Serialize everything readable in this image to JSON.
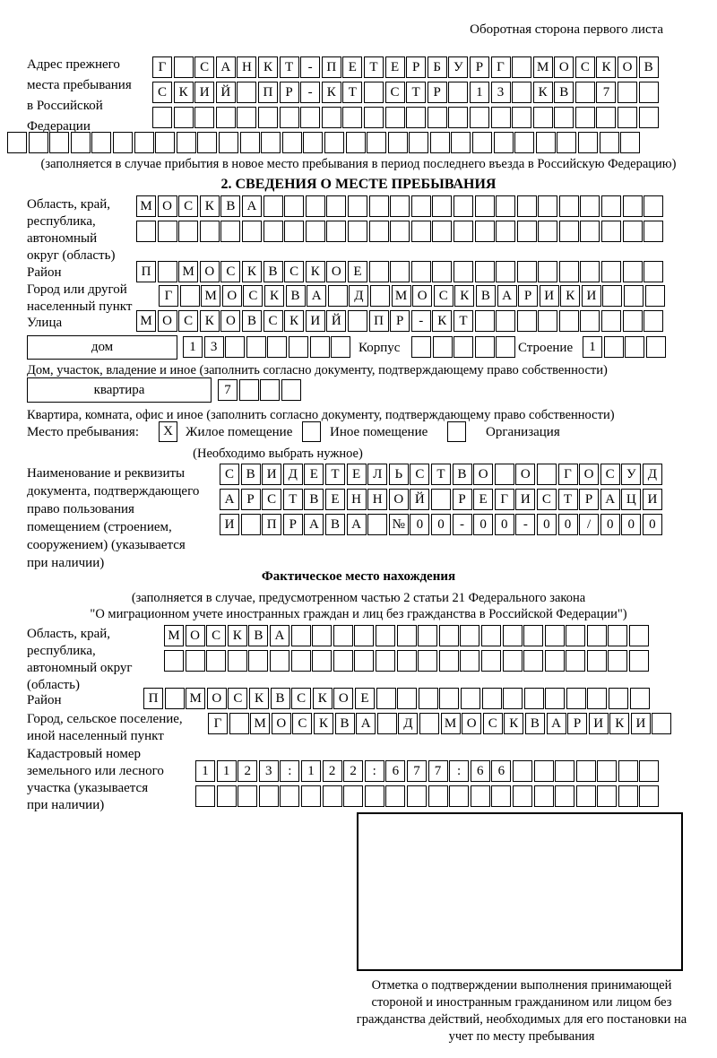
{
  "header": {
    "back_side_note": "Оборотная сторона первого листа"
  },
  "prev_address": {
    "label_lines": [
      "Адрес прежнего",
      "места пребывания",
      "в Российской",
      "Федерации"
    ],
    "rows": [
      {
        "chars": "Г САНКТ-ПЕТЕРБУРГ МОСКОВ",
        "len": 24
      },
      {
        "chars": "СКИЙ ПР-КТ СТР 13 КВ 7",
        "len": 24
      },
      {
        "chars": "",
        "len": 24
      },
      {
        "chars": "",
        "len": 30
      }
    ],
    "note": "(заполняется в случае прибытия в новое место пребывания в период последнего въезда в Российскую Федерацию)"
  },
  "section2": {
    "title": "2. СВЕДЕНИЯ О МЕСТЕ ПРЕБЫВАНИЯ",
    "region": {
      "label_lines": [
        "Область, край,",
        "республика,",
        "автономный",
        "округ (область)"
      ],
      "rows": [
        {
          "chars": "МОСКВА",
          "len": 25
        },
        {
          "chars": "",
          "len": 25
        }
      ]
    },
    "district": {
      "label": "Район",
      "row": {
        "chars": "П МОСКВСКОЕ",
        "len": 25
      }
    },
    "city": {
      "label_lines": [
        "Город или другой",
        "населенный пункт"
      ],
      "row": {
        "chars": "Г МОСКВА Д МОСКВАРИКИ",
        "len": 24
      }
    },
    "street": {
      "label": "Улица",
      "row": {
        "chars": "МОСКОВСКИЙ ПР-КТ",
        "len": 25
      }
    },
    "house": {
      "box_label": "дом",
      "cells": {
        "chars": "13",
        "len": 8
      },
      "korpus_label": "Корпус",
      "korpus_cells": {
        "chars": "",
        "len": 5
      },
      "stroenie_label": "Строение",
      "stroenie_cells": {
        "chars": "1",
        "len": 4
      },
      "note": "Дом, участок, владение и иное (заполнить согласно документу, подтверждающему право собственности)"
    },
    "apartment": {
      "box_label": "квартира",
      "cells": {
        "chars": "7",
        "len": 4
      },
      "note": "Квартира, комната, офис и иное (заполнить согласно документу, подтверждающему право собственности)"
    },
    "stay_type": {
      "label": "Место пребывания:",
      "options": [
        {
          "label": "Жилое помещение",
          "mark": "X"
        },
        {
          "label": "Иное помещение",
          "mark": ""
        },
        {
          "label": "Организация",
          "mark": ""
        }
      ],
      "note": "(Необходимо выбрать нужное)"
    },
    "document": {
      "label_lines": [
        "Наименование и реквизиты",
        "документа, подтверждающего",
        "право пользования",
        "помещением (строением,",
        "сооружением) (указывается",
        "при наличии)"
      ],
      "rows": [
        {
          "chars": "СВИДЕТЕЛЬСТВО О ГОСУД",
          "len": 21
        },
        {
          "chars": "АРСТВЕННОЙ РЕГИСТРАЦИ",
          "len": 21
        },
        {
          "chars": "И ПРАВА №00-00-00/000",
          "len": 21
        }
      ]
    }
  },
  "actual_location": {
    "title": "Фактическое место нахождения",
    "subtitle_lines": [
      "(заполняется в случае, предусмотренном частью 2 статьи 21 Федерального закона",
      "\"О миграционном учете иностранных граждан и лиц без гражданства в Российской Федерации\")"
    ],
    "region": {
      "label_lines": [
        "Область, край,",
        "республика,",
        "автономный округ",
        "(область)"
      ],
      "rows": [
        {
          "chars": "МОСКВА",
          "len": 23
        },
        {
          "chars": "",
          "len": 23
        }
      ]
    },
    "district": {
      "label": "Район",
      "row": {
        "chars": "П МОСКВСКОЕ",
        "len": 24
      }
    },
    "city": {
      "label_lines": [
        "Город, сельское поселение,",
        "иной населенный пункт"
      ],
      "row": {
        "chars": "Г МОСКВА Д МОСКВАРИКИ",
        "len": 22
      }
    },
    "cadastral": {
      "label_lines": [
        "Кадастровый номер",
        "земельного или лесного",
        "участка (указывается",
        "при наличии)"
      ],
      "rows": [
        {
          "chars": "1123:122:677:66",
          "len": 22
        },
        {
          "chars": "",
          "len": 22
        }
      ]
    }
  },
  "confirmation": {
    "note": "Отметка о подтверждении выполнения принимающей стороной и иностранным гражданином или лицом без гражданства действий, необходимых для его постановки на учет по месту пребывания"
  }
}
